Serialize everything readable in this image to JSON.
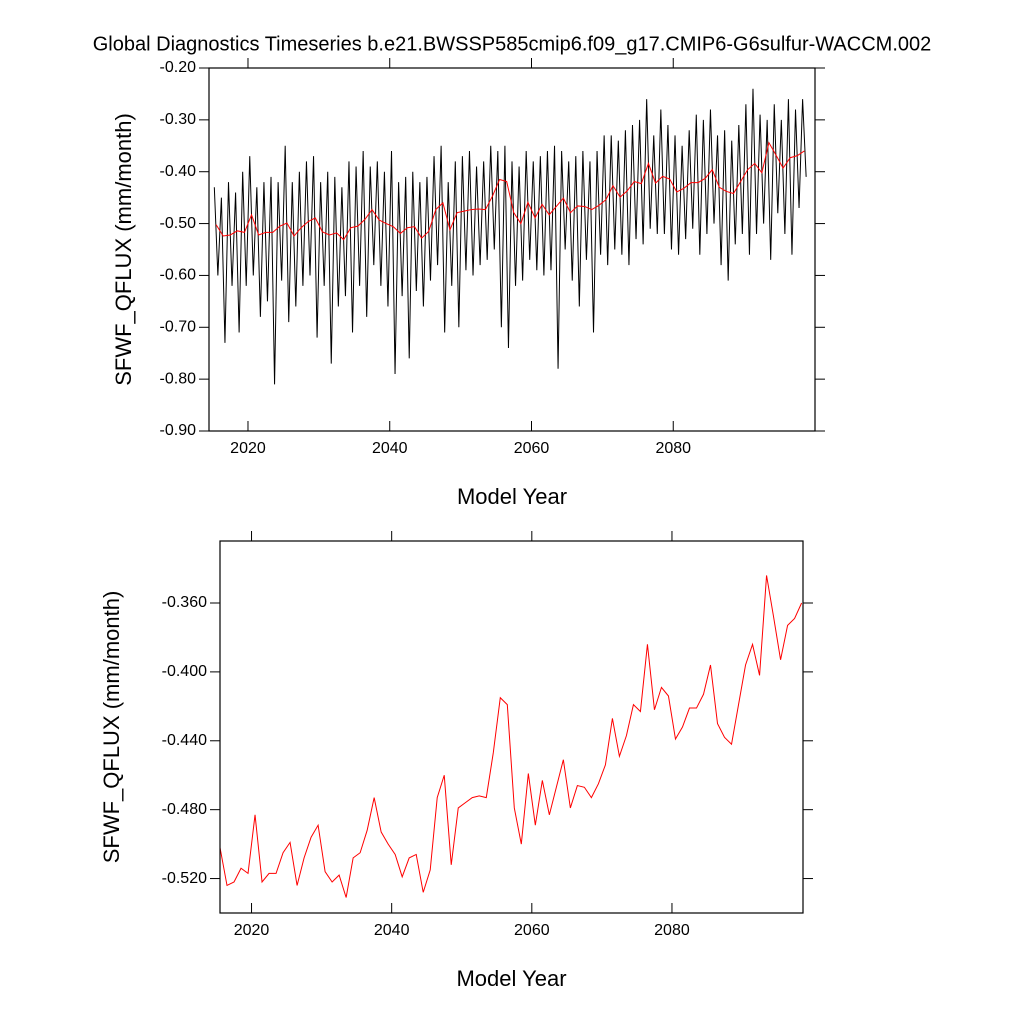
{
  "chart_data": [
    {
      "type": "line",
      "title": "Global Diagnostics Timeseries b.e21.BWSSP585cmip6.f09_g17.CMIP6-G6sulfur-WACCM.002",
      "x_label": "Model Year",
      "y_label": "SFWF_QFLUX (mm/month)",
      "xlim": [
        2014.5,
        2100
      ],
      "xticks": [
        2020,
        2040,
        2060,
        2080
      ],
      "ylim": [
        -0.9,
        -0.2
      ],
      "yticks": [
        {
          "value": -0.9,
          "label": "-0.90"
        },
        {
          "value": -0.8,
          "label": "-0.80"
        },
        {
          "value": -0.7,
          "label": "-0.70"
        },
        {
          "value": -0.6,
          "label": "-0.60"
        },
        {
          "value": -0.5,
          "label": "-0.50"
        },
        {
          "value": -0.4,
          "label": "-0.40"
        },
        {
          "value": -0.3,
          "label": "-0.30"
        },
        {
          "value": -0.2,
          "label": "-0.20"
        }
      ],
      "series": [
        {
          "color": "#000000",
          "x": [
            2015.25,
            2015.75,
            2016.25,
            2016.75,
            2017.25,
            2017.75,
            2018.25,
            2018.75,
            2019.25,
            2019.75,
            2020.25,
            2020.75,
            2021.25,
            2021.75,
            2022.25,
            2022.75,
            2023.25,
            2023.75,
            2024.25,
            2024.75,
            2025.25,
            2025.75,
            2026.25,
            2026.75,
            2027.25,
            2027.75,
            2028.25,
            2028.75,
            2029.25,
            2029.75,
            2030.25,
            2030.75,
            2031.25,
            2031.75,
            2032.25,
            2032.75,
            2033.25,
            2033.75,
            2034.25,
            2034.75,
            2035.25,
            2035.75,
            2036.25,
            2036.75,
            2037.25,
            2037.75,
            2038.25,
            2038.75,
            2039.25,
            2039.75,
            2040.25,
            2040.75,
            2041.25,
            2041.75,
            2042.25,
            2042.75,
            2043.25,
            2043.75,
            2044.25,
            2044.75,
            2045.25,
            2045.75,
            2046.25,
            2046.75,
            2047.25,
            2047.75,
            2048.25,
            2048.75,
            2049.25,
            2049.75,
            2050.25,
            2050.75,
            2051.25,
            2051.75,
            2052.25,
            2052.75,
            2053.25,
            2053.75,
            2054.25,
            2054.75,
            2055.25,
            2055.75,
            2056.25,
            2056.75,
            2057.25,
            2057.75,
            2058.25,
            2058.75,
            2059.25,
            2059.75,
            2060.25,
            2060.75,
            2061.25,
            2061.75,
            2062.25,
            2062.75,
            2063.25,
            2063.75,
            2064.25,
            2064.75,
            2065.25,
            2065.75,
            2066.25,
            2066.75,
            2067.25,
            2067.75,
            2068.25,
            2068.75,
            2069.25,
            2069.75,
            2070.25,
            2070.75,
            2071.25,
            2071.75,
            2072.25,
            2072.75,
            2073.25,
            2073.75,
            2074.25,
            2074.75,
            2075.25,
            2075.75,
            2076.25,
            2076.75,
            2077.25,
            2077.75,
            2078.25,
            2078.75,
            2079.25,
            2079.75,
            2080.25,
            2080.75,
            2081.25,
            2081.75,
            2082.25,
            2082.75,
            2083.25,
            2083.75,
            2084.25,
            2084.75,
            2085.25,
            2085.75,
            2086.25,
            2086.75,
            2087.25,
            2087.75,
            2088.25,
            2088.75,
            2089.25,
            2089.75,
            2090.25,
            2090.75,
            2091.25,
            2091.75,
            2092.25,
            2092.75,
            2093.25,
            2093.75,
            2094.25,
            2094.75,
            2095.25,
            2095.75,
            2096.25,
            2096.75,
            2097.25,
            2097.75,
            2098.25,
            2098.75
          ],
          "values": [
            -0.43,
            -0.6,
            -0.45,
            -0.73,
            -0.42,
            -0.62,
            -0.44,
            -0.71,
            -0.4,
            -0.62,
            -0.37,
            -0.6,
            -0.43,
            -0.68,
            -0.42,
            -0.65,
            -0.41,
            -0.81,
            -0.42,
            -0.61,
            -0.35,
            -0.69,
            -0.42,
            -0.66,
            -0.4,
            -0.62,
            -0.38,
            -0.6,
            -0.37,
            -0.72,
            -0.42,
            -0.62,
            -0.4,
            -0.77,
            -0.41,
            -0.66,
            -0.43,
            -0.64,
            -0.38,
            -0.71,
            -0.39,
            -0.62,
            -0.36,
            -0.68,
            -0.39,
            -0.58,
            -0.38,
            -0.62,
            -0.4,
            -0.66,
            -0.36,
            -0.79,
            -0.42,
            -0.64,
            -0.41,
            -0.76,
            -0.4,
            -0.63,
            -0.42,
            -0.66,
            -0.41,
            -0.61,
            -0.37,
            -0.58,
            -0.35,
            -0.71,
            -0.42,
            -0.62,
            -0.38,
            -0.7,
            -0.37,
            -0.59,
            -0.36,
            -0.6,
            -0.39,
            -0.58,
            -0.38,
            -0.57,
            -0.35,
            -0.55,
            -0.36,
            -0.7,
            -0.35,
            -0.74,
            -0.38,
            -0.62,
            -0.39,
            -0.61,
            -0.36,
            -0.57,
            -0.38,
            -0.59,
            -0.37,
            -0.6,
            -0.36,
            -0.59,
            -0.35,
            -0.78,
            -0.36,
            -0.55,
            -0.38,
            -0.61,
            -0.37,
            -0.66,
            -0.36,
            -0.57,
            -0.38,
            -0.71,
            -0.36,
            -0.56,
            -0.33,
            -0.58,
            -0.33,
            -0.55,
            -0.34,
            -0.56,
            -0.32,
            -0.58,
            -0.31,
            -0.53,
            -0.3,
            -0.54,
            -0.26,
            -0.51,
            -0.33,
            -0.52,
            -0.28,
            -0.52,
            -0.31,
            -0.55,
            -0.33,
            -0.56,
            -0.35,
            -0.53,
            -0.32,
            -0.51,
            -0.29,
            -0.56,
            -0.3,
            -0.52,
            -0.28,
            -0.5,
            -0.33,
            -0.58,
            -0.32,
            -0.61,
            -0.34,
            -0.54,
            -0.31,
            -0.52,
            -0.27,
            -0.56,
            -0.24,
            -0.52,
            -0.29,
            -0.5,
            -0.3,
            -0.57,
            -0.27,
            -0.48,
            -0.3,
            -0.52,
            -0.26,
            -0.56,
            -0.28,
            -0.47,
            -0.26,
            -0.41
          ]
        },
        {
          "color": "#ff0000",
          "x": [
            2015.5,
            2016.5,
            2017.5,
            2018.5,
            2019.5,
            2020.5,
            2021.5,
            2022.5,
            2023.5,
            2024.5,
            2025.5,
            2026.5,
            2027.5,
            2028.5,
            2029.5,
            2030.5,
            2031.5,
            2032.5,
            2033.5,
            2034.5,
            2035.5,
            2036.5,
            2037.5,
            2038.5,
            2039.5,
            2040.5,
            2041.5,
            2042.5,
            2043.5,
            2044.5,
            2045.5,
            2046.5,
            2047.5,
            2048.5,
            2049.5,
            2050.5,
            2051.5,
            2052.5,
            2053.5,
            2054.5,
            2055.5,
            2056.5,
            2057.5,
            2058.5,
            2059.5,
            2060.5,
            2061.5,
            2062.5,
            2063.5,
            2064.5,
            2065.5,
            2066.5,
            2067.5,
            2068.5,
            2069.5,
            2070.5,
            2071.5,
            2072.5,
            2073.5,
            2074.5,
            2075.5,
            2076.5,
            2077.5,
            2078.5,
            2079.5,
            2080.5,
            2081.5,
            2082.5,
            2083.5,
            2084.5,
            2085.5,
            2086.5,
            2087.5,
            2088.5,
            2089.5,
            2090.5,
            2091.5,
            2092.5,
            2093.5,
            2094.5,
            2095.5,
            2096.5,
            2097.5,
            2098.5
          ],
          "values": [
            -0.502,
            -0.524,
            -0.522,
            -0.514,
            -0.517,
            -0.483,
            -0.522,
            -0.517,
            -0.517,
            -0.505,
            -0.499,
            -0.524,
            -0.508,
            -0.496,
            -0.489,
            -0.516,
            -0.522,
            -0.518,
            -0.531,
            -0.508,
            -0.505,
            -0.492,
            -0.473,
            -0.493,
            -0.5,
            -0.506,
            -0.519,
            -0.508,
            -0.506,
            -0.528,
            -0.515,
            -0.473,
            -0.46,
            -0.512,
            -0.479,
            -0.476,
            -0.473,
            -0.472,
            -0.473,
            -0.447,
            -0.415,
            -0.419,
            -0.479,
            -0.5,
            -0.459,
            -0.489,
            -0.463,
            -0.483,
            -0.467,
            -0.451,
            -0.479,
            -0.466,
            -0.467,
            -0.473,
            -0.465,
            -0.454,
            -0.427,
            -0.449,
            -0.437,
            -0.419,
            -0.423,
            -0.384,
            -0.422,
            -0.409,
            -0.414,
            -0.439,
            -0.432,
            -0.421,
            -0.421,
            -0.413,
            -0.396,
            -0.43,
            -0.438,
            -0.442,
            -0.419,
            -0.396,
            -0.384,
            -0.402,
            -0.344,
            -0.368,
            -0.393,
            -0.373,
            -0.369,
            -0.36
          ]
        }
      ]
    },
    {
      "type": "line",
      "x_label": "Model Year",
      "y_label": "SFWF_QFLUX (mm/month)",
      "xlim": [
        2015.5,
        2098.7
      ],
      "xticks": [
        2020,
        2040,
        2060,
        2080
      ],
      "ylim": [
        -0.54,
        -0.324
      ],
      "yticks": [
        {
          "value": -0.52,
          "label": "-0.520"
        },
        {
          "value": -0.48,
          "label": "-0.480"
        },
        {
          "value": -0.44,
          "label": "-0.440"
        },
        {
          "value": -0.4,
          "label": "-0.400"
        },
        {
          "value": -0.36,
          "label": "-0.360"
        }
      ],
      "series": [
        {
          "color": "#ff0000",
          "x": [
            2015.5,
            2016.5,
            2017.5,
            2018.5,
            2019.5,
            2020.5,
            2021.5,
            2022.5,
            2023.5,
            2024.5,
            2025.5,
            2026.5,
            2027.5,
            2028.5,
            2029.5,
            2030.5,
            2031.5,
            2032.5,
            2033.5,
            2034.5,
            2035.5,
            2036.5,
            2037.5,
            2038.5,
            2039.5,
            2040.5,
            2041.5,
            2042.5,
            2043.5,
            2044.5,
            2045.5,
            2046.5,
            2047.5,
            2048.5,
            2049.5,
            2050.5,
            2051.5,
            2052.5,
            2053.5,
            2054.5,
            2055.5,
            2056.5,
            2057.5,
            2058.5,
            2059.5,
            2060.5,
            2061.5,
            2062.5,
            2063.5,
            2064.5,
            2065.5,
            2066.5,
            2067.5,
            2068.5,
            2069.5,
            2070.5,
            2071.5,
            2072.5,
            2073.5,
            2074.5,
            2075.5,
            2076.5,
            2077.5,
            2078.5,
            2079.5,
            2080.5,
            2081.5,
            2082.5,
            2083.5,
            2084.5,
            2085.5,
            2086.5,
            2087.5,
            2088.5,
            2089.5,
            2090.5,
            2091.5,
            2092.5,
            2093.5,
            2094.5,
            2095.5,
            2096.5,
            2097.5,
            2098.5
          ],
          "values": [
            -0.502,
            -0.524,
            -0.522,
            -0.514,
            -0.517,
            -0.483,
            -0.522,
            -0.517,
            -0.517,
            -0.505,
            -0.499,
            -0.524,
            -0.508,
            -0.496,
            -0.489,
            -0.516,
            -0.522,
            -0.518,
            -0.531,
            -0.508,
            -0.505,
            -0.492,
            -0.473,
            -0.493,
            -0.5,
            -0.506,
            -0.519,
            -0.508,
            -0.506,
            -0.528,
            -0.515,
            -0.473,
            -0.46,
            -0.512,
            -0.479,
            -0.476,
            -0.473,
            -0.472,
            -0.473,
            -0.447,
            -0.415,
            -0.419,
            -0.479,
            -0.5,
            -0.459,
            -0.489,
            -0.463,
            -0.483,
            -0.467,
            -0.451,
            -0.479,
            -0.466,
            -0.467,
            -0.473,
            -0.465,
            -0.454,
            -0.427,
            -0.449,
            -0.437,
            -0.419,
            -0.423,
            -0.384,
            -0.422,
            -0.409,
            -0.414,
            -0.439,
            -0.432,
            -0.421,
            -0.421,
            -0.413,
            -0.396,
            -0.43,
            -0.438,
            -0.442,
            -0.419,
            -0.396,
            -0.384,
            -0.402,
            -0.344,
            -0.368,
            -0.393,
            -0.373,
            -0.369,
            -0.36
          ]
        }
      ]
    }
  ]
}
